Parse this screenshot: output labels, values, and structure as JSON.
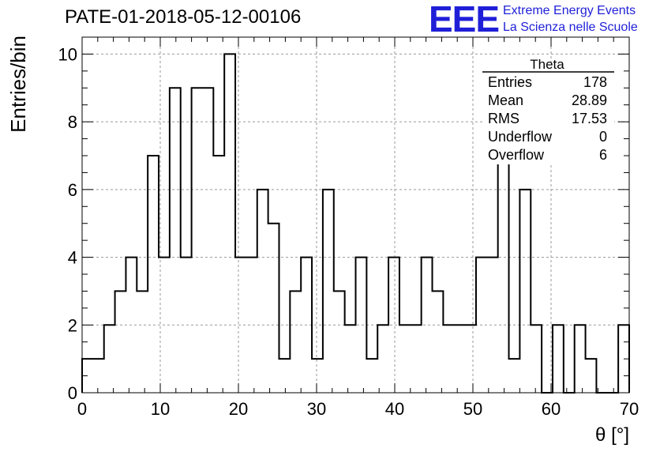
{
  "page": {
    "title": "PATE-01-2018-05-12-00106",
    "logo_text": "EEE",
    "brand_line1": "Extreme Energy Events",
    "brand_line2": "La Scienza nelle Scuole",
    "logo_color": "#1f1fd8"
  },
  "chart_data": {
    "type": "bar",
    "histogram": true,
    "bin_width": 1.4,
    "x_start": 0,
    "values": [
      1,
      1,
      2,
      3,
      4,
      3,
      7,
      4,
      9,
      4,
      9,
      9,
      7,
      10,
      4,
      4,
      6,
      5,
      1,
      3,
      4,
      1,
      6,
      3,
      2,
      4,
      1,
      2,
      4,
      2,
      2,
      4,
      3,
      2,
      2,
      2,
      4,
      4,
      8,
      1,
      6,
      2,
      0,
      2,
      0,
      2,
      1,
      0,
      0,
      2
    ],
    "xlim": [
      0,
      70
    ],
    "ylim": [
      0,
      10.5
    ],
    "x_ticks": [
      0,
      10,
      20,
      30,
      40,
      50,
      60,
      70
    ],
    "y_ticks": [
      0,
      2,
      4,
      6,
      8,
      10
    ],
    "xlabel": "θ [°]",
    "ylabel": "Entries/bin",
    "grid": true,
    "stats": {
      "name": "Theta",
      "rows": [
        {
          "label": "Entries",
          "value": "178"
        },
        {
          "label": "Mean",
          "value": "28.89"
        },
        {
          "label": "RMS",
          "value": "17.53"
        },
        {
          "label": "Underflow",
          "value": "0"
        },
        {
          "label": "Overflow",
          "value": "6"
        }
      ]
    }
  }
}
